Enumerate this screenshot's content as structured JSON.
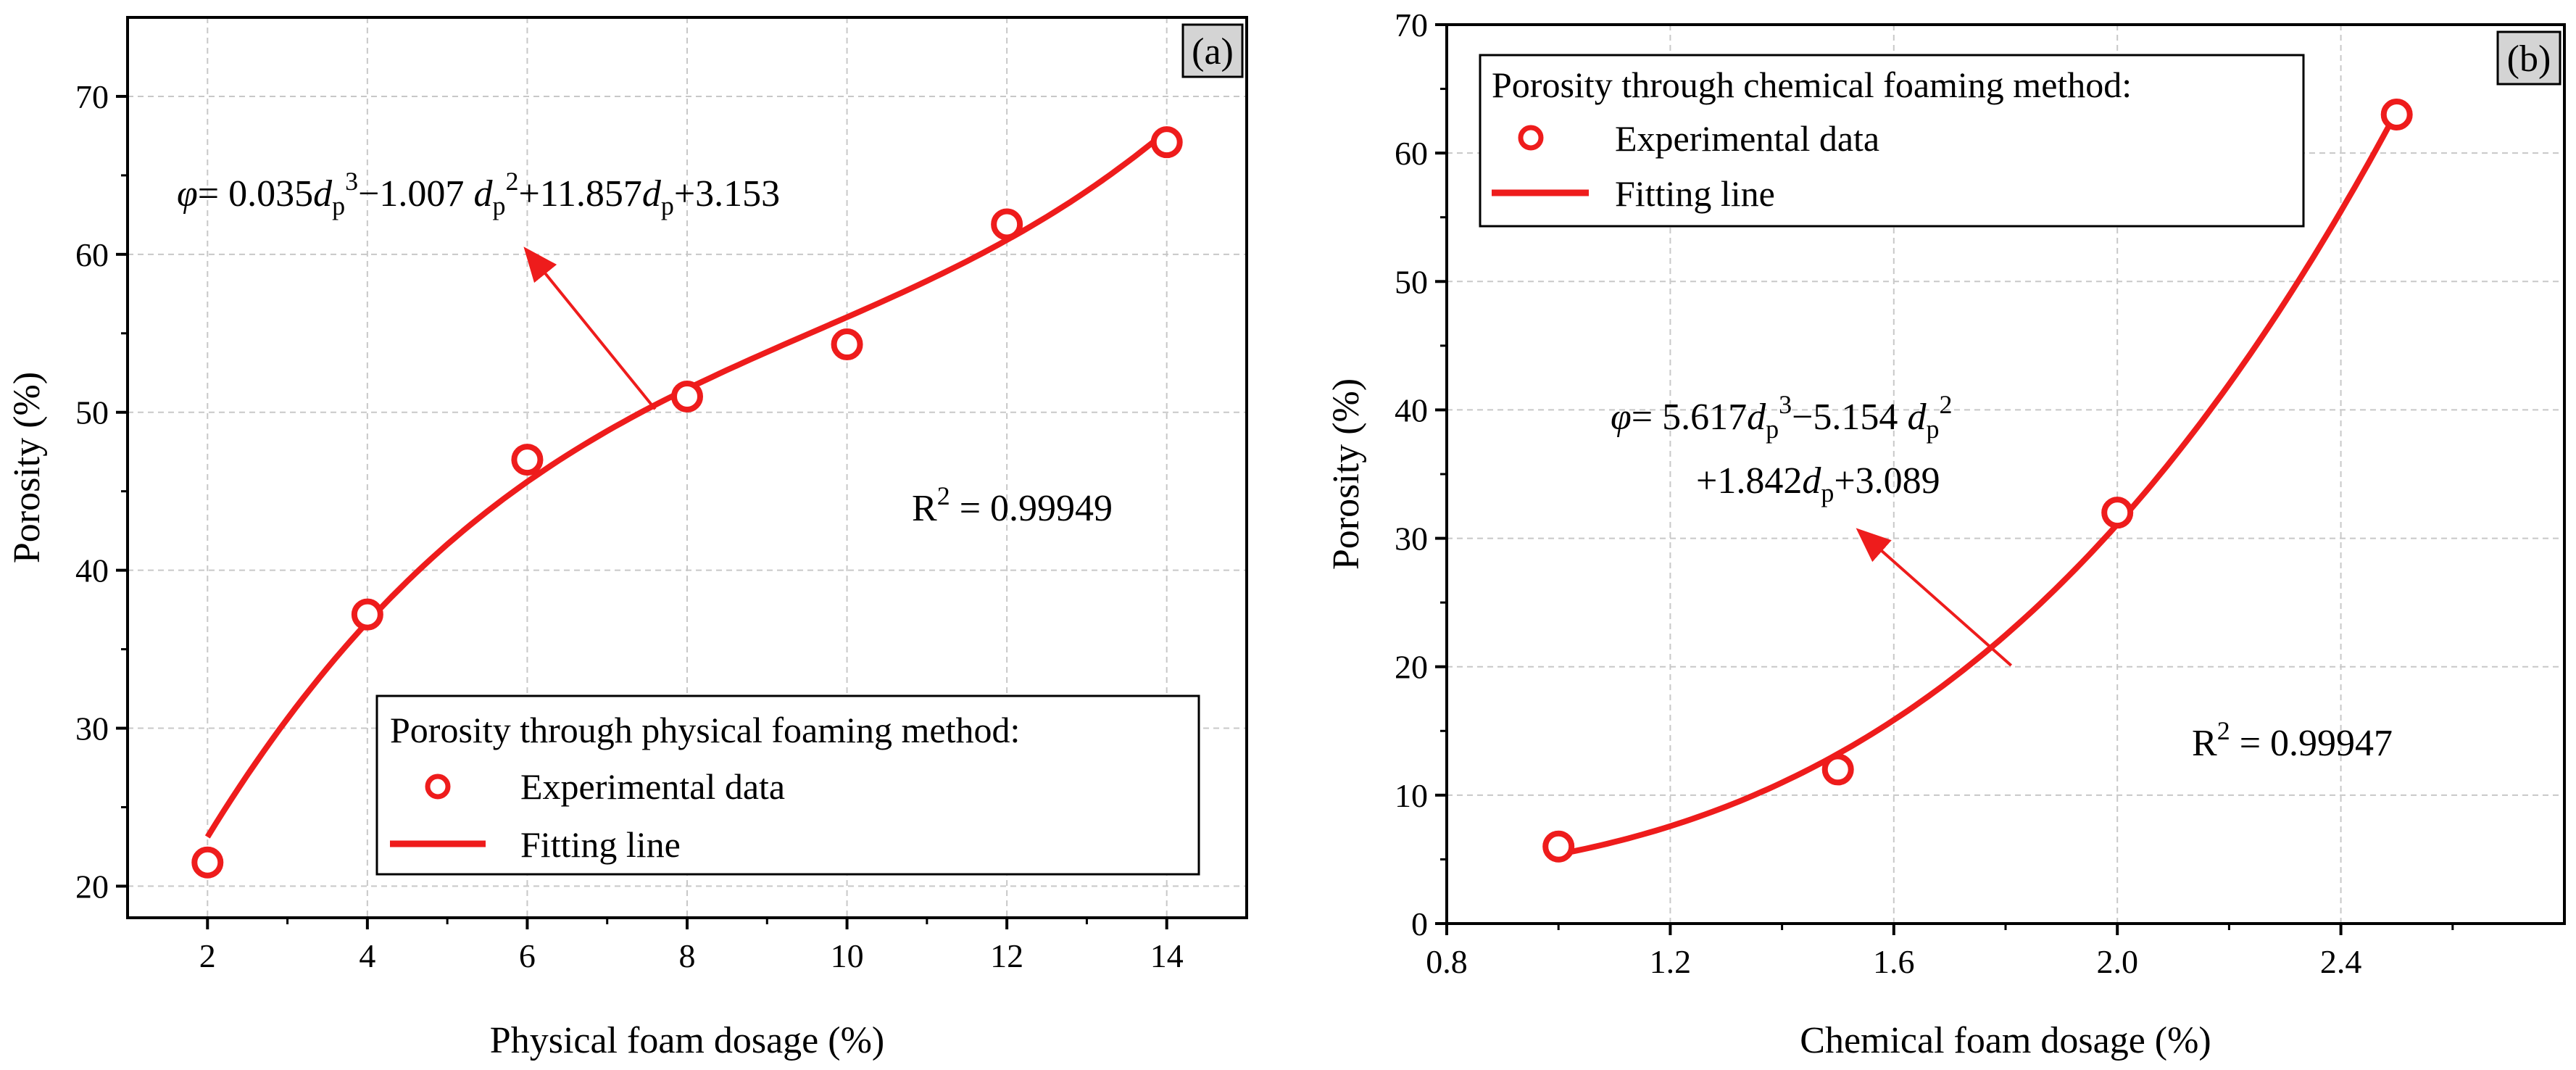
{
  "chart_data": [
    {
      "type": "scatter",
      "panel_label": "(a)",
      "xlabel": "Physical foam dosage (%)",
      "ylabel": "Porosity (%)",
      "xlim": [
        1,
        15
      ],
      "ylim": [
        18,
        75
      ],
      "xticks": [
        2,
        4,
        6,
        8,
        10,
        12,
        14
      ],
      "yticks": [
        20,
        30,
        40,
        50,
        60,
        70
      ],
      "grid": true,
      "legend": {
        "placement": "bottom-right",
        "title": "Porosity through physical foaming method:",
        "entries": [
          "Experimental data",
          "Fitting line"
        ]
      },
      "series": [
        {
          "name": "Experimental data",
          "x": [
            2,
            4,
            6,
            8,
            10,
            12,
            14
          ],
          "y": [
            21.5,
            37.2,
            47.0,
            51.0,
            54.3,
            61.9,
            67.1
          ]
        },
        {
          "name": "Fitting line",
          "fit": {
            "coef": [
              0.035,
              -1.007,
              11.857,
              3.153
            ],
            "x_range": [
              2,
              14
            ]
          }
        }
      ],
      "equation": {
        "var": "φ",
        "line1": [
          "= 0.035",
          "−1.007 ",
          "+11.857",
          "+3.153"
        ]
      },
      "r2": {
        "label": "R",
        "value": " = 0.99949"
      },
      "arrow": {
        "from": [
          7.6,
          50.2
        ],
        "to": [
          6.0,
          60.2
        ]
      },
      "colors": {
        "marker": "#ee1c1c",
        "line": "#ee1c1c",
        "panel_label_bg": "#d4d4d4"
      }
    },
    {
      "type": "scatter",
      "panel_label": "(b)",
      "xlabel": "Chemical foam dosage (%)",
      "ylabel": "Porosity (%)",
      "xlim": [
        0.8,
        2.8
      ],
      "ylim": [
        0,
        70
      ],
      "xticks": [
        "0.8",
        "1.2",
        "1.6",
        "2.0",
        "2.4"
      ],
      "xtick_values": [
        0.8,
        1.2,
        1.6,
        2.0,
        2.4
      ],
      "yticks": [
        0,
        10,
        20,
        30,
        40,
        50,
        60,
        70
      ],
      "grid": true,
      "legend": {
        "placement": "top-left",
        "title": "Porosity through chemical foaming method:",
        "entries": [
          "Experimental data",
          "Fitting line"
        ]
      },
      "series": [
        {
          "name": "Experimental data",
          "x": [
            1.0,
            1.5,
            2.0,
            2.5
          ],
          "y": [
            6.0,
            12.0,
            32.0,
            63.0
          ]
        },
        {
          "name": "Fitting line",
          "fit": {
            "coef": [
              5.617,
              -5.154,
              1.842,
              3.089
            ],
            "x_range": [
              1.0,
              2.5
            ]
          }
        }
      ],
      "equation": {
        "var": "φ",
        "line1": [
          "= 5.617",
          "−5.154 "
        ],
        "line2": [
          "+1.842",
          "+3.089"
        ]
      },
      "r2": {
        "label": "R",
        "value": " = 0.99947"
      },
      "arrow": {
        "from": [
          1.81,
          20.1
        ],
        "to": [
          1.54,
          30.5
        ]
      },
      "colors": {
        "marker": "#ee1c1c",
        "line": "#ee1c1c",
        "panel_label_bg": "#d4d4d4"
      }
    }
  ]
}
